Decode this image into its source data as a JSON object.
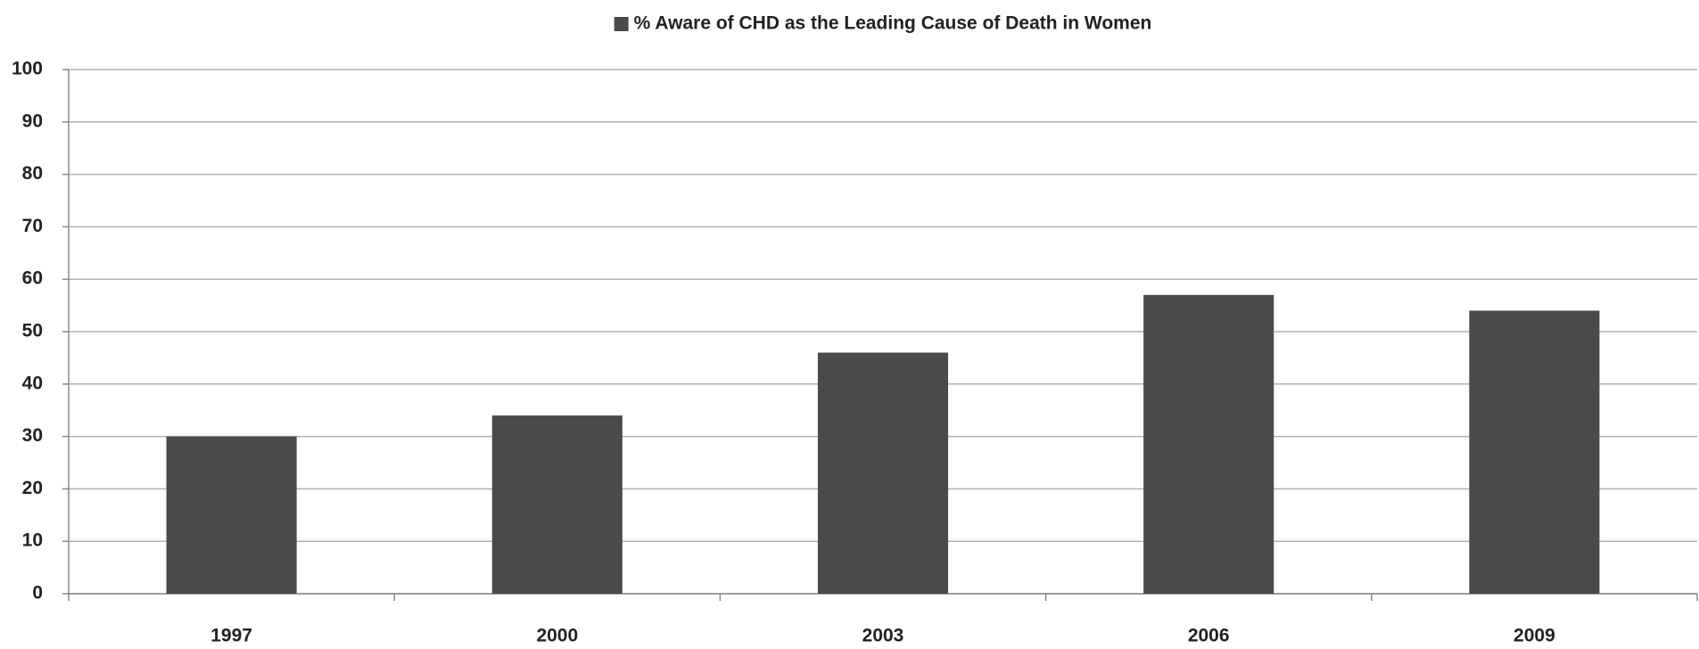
{
  "chart_data": {
    "type": "bar",
    "categories": [
      "1997",
      "2000",
      "2003",
      "2006",
      "2009"
    ],
    "series": [
      {
        "name": "% Aware of CHD as the Leading Cause of Death in Women",
        "color": "#4a4a4a",
        "values": [
          30,
          34,
          46,
          57,
          54
        ]
      }
    ],
    "ylim": [
      0,
      100
    ],
    "yticks": [
      0,
      10,
      20,
      30,
      40,
      50,
      60,
      70,
      80,
      90,
      100
    ],
    "grid": true,
    "legend": "top"
  }
}
